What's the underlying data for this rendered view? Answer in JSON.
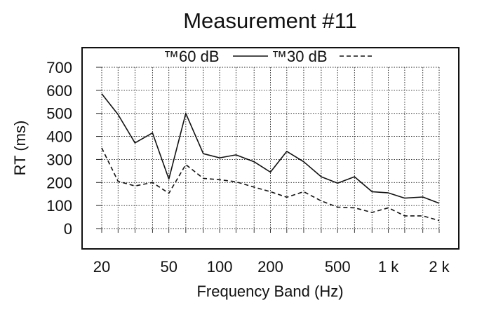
{
  "chart_data": {
    "type": "line",
    "title": "Measurement #11",
    "xlabel": "Frequency Band (Hz)",
    "ylabel": "RT (ms)",
    "x_scale": "log",
    "xlim": [
      20,
      2000
    ],
    "ylim": [
      0,
      700
    ],
    "grid": true,
    "legend_position": "top",
    "x_ticks": [
      {
        "value": 20,
        "label": "20"
      },
      {
        "value": 50,
        "label": "50"
      },
      {
        "value": 100,
        "label": "100"
      },
      {
        "value": 200,
        "label": "200"
      },
      {
        "value": 500,
        "label": "500"
      },
      {
        "value": 1000,
        "label": "1 k"
      },
      {
        "value": 2000,
        "label": "2 k"
      }
    ],
    "y_ticks": [
      {
        "value": 0,
        "label": "0"
      },
      {
        "value": 100,
        "label": "100"
      },
      {
        "value": 200,
        "label": "200"
      },
      {
        "value": 300,
        "label": "300"
      },
      {
        "value": 400,
        "label": "400"
      },
      {
        "value": 500,
        "label": "500"
      },
      {
        "value": 600,
        "label": "600"
      },
      {
        "value": 700,
        "label": "700"
      }
    ],
    "x": [
      20,
      25,
      31.5,
      40,
      50,
      63,
      80,
      100,
      125,
      160,
      200,
      250,
      315,
      400,
      500,
      630,
      800,
      1000,
      1250,
      1600,
      2000
    ],
    "series": [
      {
        "name": "™60 dB",
        "style": "solid",
        "values": [
          585,
          495,
          372,
          415,
          215,
          500,
          325,
          307,
          320,
          290,
          245,
          335,
          290,
          225,
          197,
          225,
          160,
          155,
          132,
          137,
          110
        ]
      },
      {
        "name": "™30 dB",
        "style": "dashed",
        "values": [
          350,
          205,
          185,
          200,
          153,
          278,
          218,
          212,
          203,
          180,
          160,
          136,
          160,
          120,
          93,
          90,
          70,
          90,
          55,
          55,
          35
        ]
      }
    ]
  }
}
